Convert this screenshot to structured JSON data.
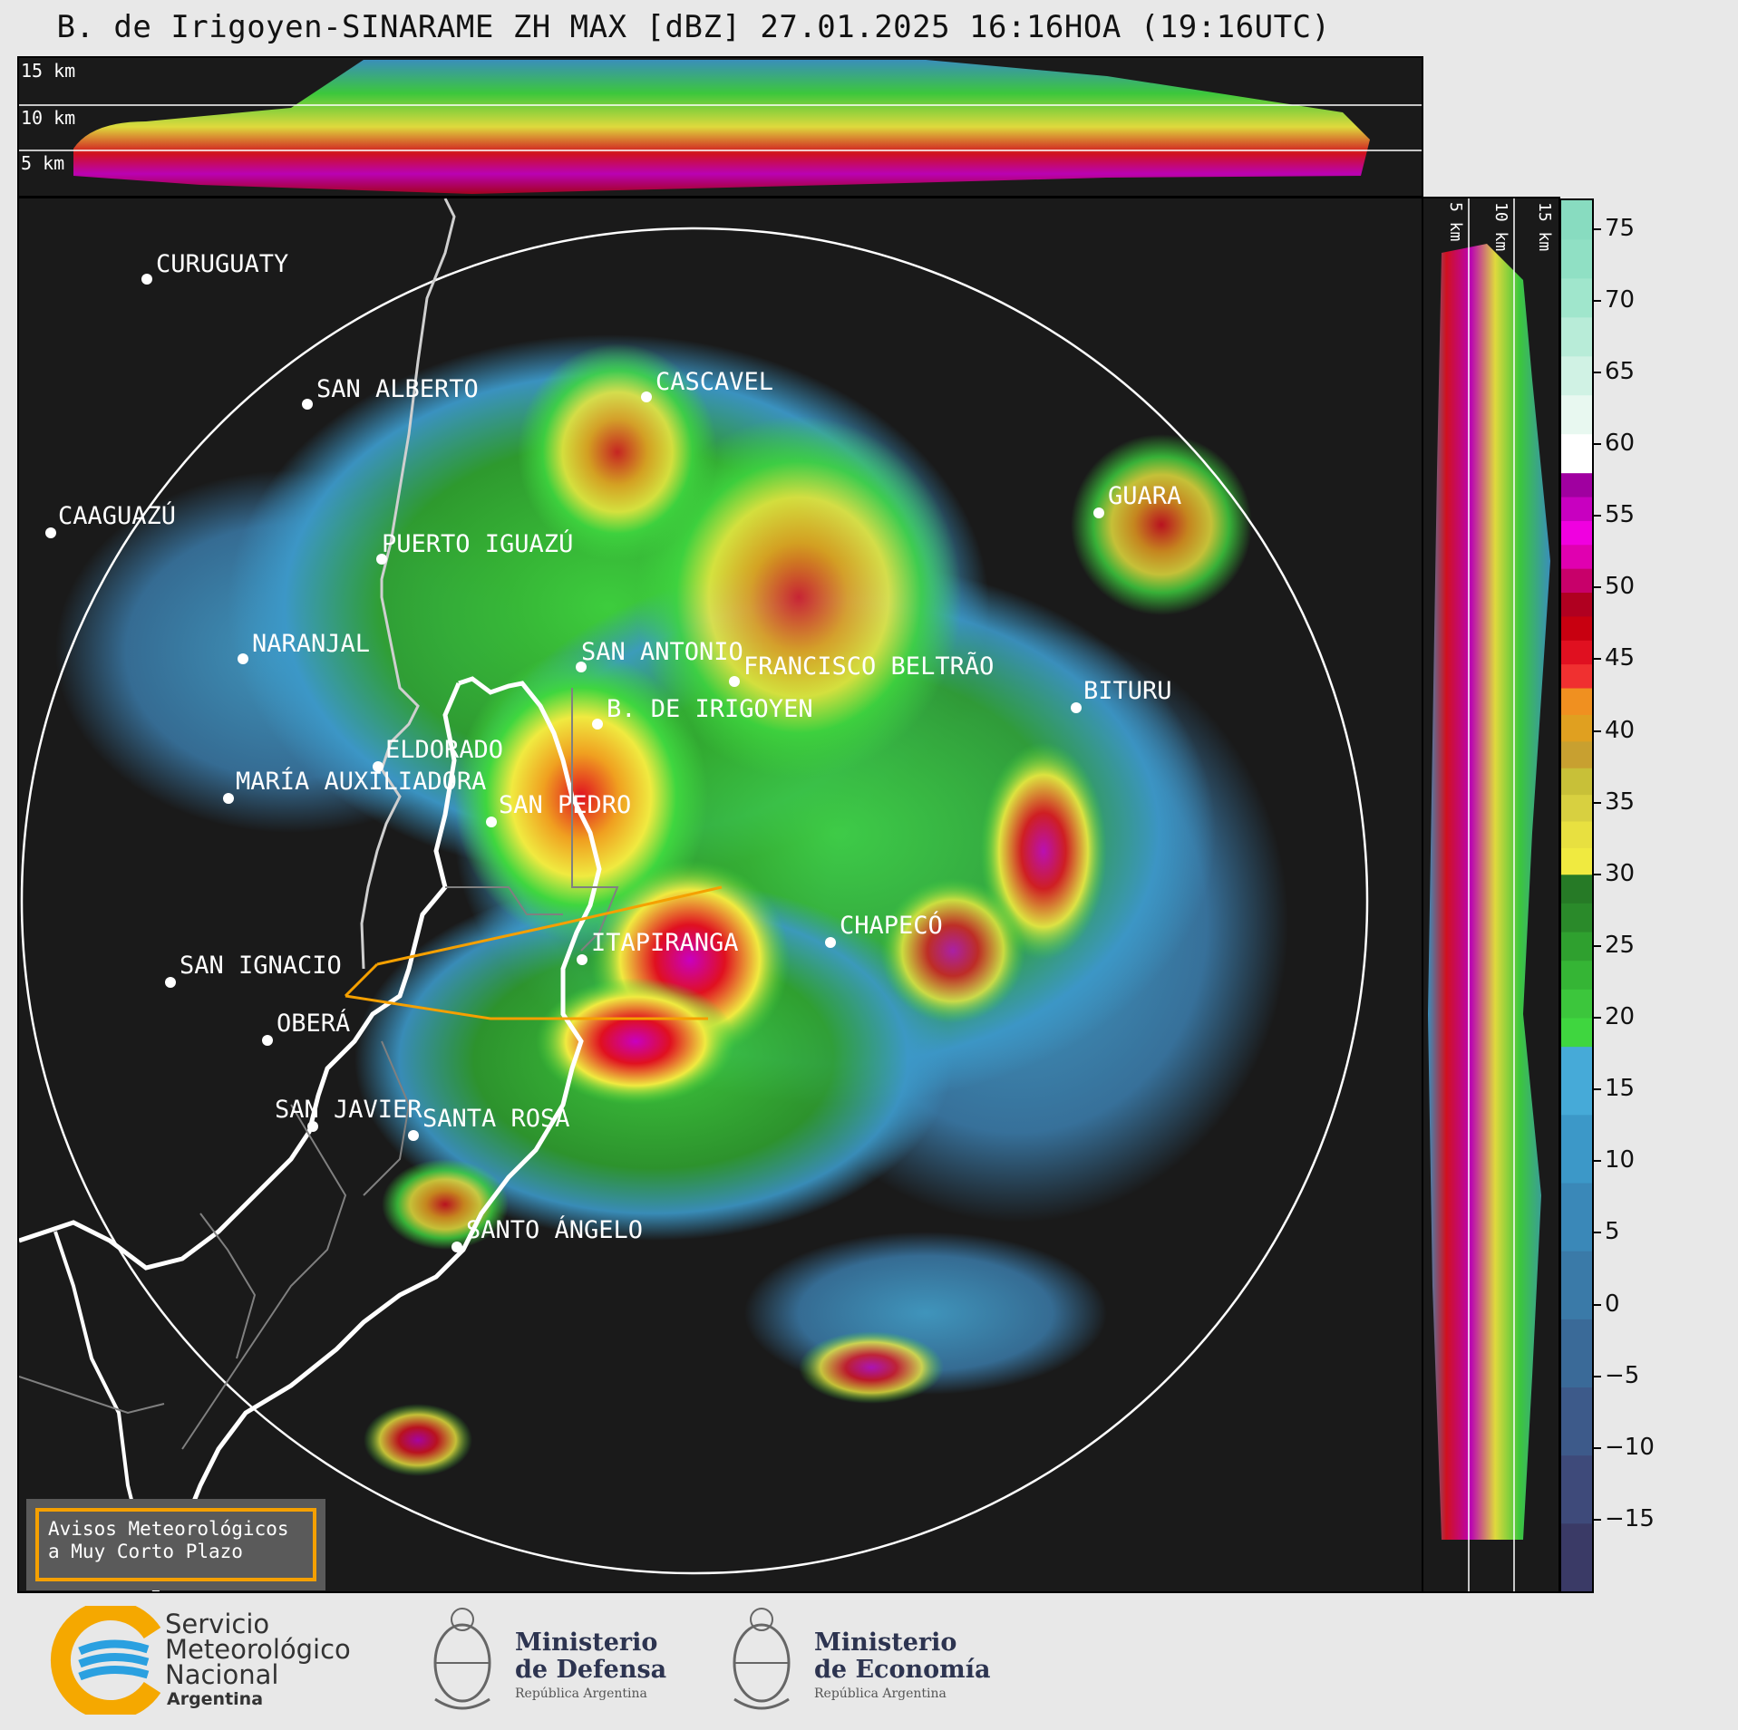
{
  "title": "B. de Irigoyen-SINARAME ZH MAX [dBZ] 27.01.2025 16:16HOA (19:16UTC)",
  "top_panel": {
    "altitude_labels": [
      "15 km",
      "10 km",
      "5 km"
    ]
  },
  "side_panel": {
    "altitude_labels": [
      "5 km",
      "10 km",
      "15 km"
    ]
  },
  "colorbar": {
    "unit": "dBZ",
    "ticks": [
      "75",
      "70",
      "65",
      "60",
      "55",
      "50",
      "45",
      "40",
      "35",
      "30",
      "25",
      "20",
      "15",
      "10",
      "5",
      "0",
      "−5",
      "−10",
      "−15"
    ],
    "range": [
      -20,
      77
    ],
    "bands": [
      {
        "from": -20,
        "to": 18,
        "colors": [
          "#3a3a66",
          "#3e4a7a",
          "#3d5a8a",
          "#3a6a98",
          "#3a7aa8",
          "#3a88b8",
          "#3c98c8",
          "#46aad8"
        ]
      },
      {
        "from": 18,
        "to": 30,
        "colors": [
          "#3fd63f",
          "#3cc63c",
          "#35b535",
          "#2fa02f",
          "#2a8a2a",
          "#267a26"
        ]
      },
      {
        "from": 30,
        "to": 43,
        "colors": [
          "#f0ea40",
          "#e8e040",
          "#d8d040",
          "#c8c038",
          "#c8a030",
          "#e0a020",
          "#f09020"
        ]
      },
      {
        "from": 43,
        "to": 58,
        "colors": [
          "#f03030",
          "#e01020",
          "#c80010",
          "#b00020",
          "#c8006a",
          "#e000b0",
          "#f000e0",
          "#c800c0",
          "#a000a0"
        ]
      },
      {
        "from": 58,
        "to": 77,
        "colors": [
          "#ffffff",
          "#e8f8f0",
          "#d0f2e4",
          "#b8ecd8",
          "#a0e6cc",
          "#90e0c4",
          "#88dcc0"
        ]
      }
    ]
  },
  "map": {
    "cities": [
      {
        "name": "CURUGUATY"
      },
      {
        "name": "SAN ALBERTO"
      },
      {
        "name": "CASCAVEL"
      },
      {
        "name": "CAAGUAZÚ"
      },
      {
        "name": "GUARA"
      },
      {
        "name": "PUERTO IGUAZÚ"
      },
      {
        "name": "NARANJAL"
      },
      {
        "name": "SAN ANTONIO"
      },
      {
        "name": "FRANCISCO BELTRÃO"
      },
      {
        "name": "BITURU"
      },
      {
        "name": "B. DE IRIGOYEN"
      },
      {
        "name": "ELDORADO"
      },
      {
        "name": "MARÍA AUXILIADORA"
      },
      {
        "name": "SAN PEDRO"
      },
      {
        "name": "CHAPECÓ"
      },
      {
        "name": "ITAPIRANGA"
      },
      {
        "name": "SAN IGNACIO"
      },
      {
        "name": "OBERÁ"
      },
      {
        "name": "SAN JAVIER"
      },
      {
        "name": "SANTA ROSA"
      },
      {
        "name": "SANTO ÁNGELO"
      }
    ]
  },
  "avisos": {
    "line1": "Avisos Meteorológicos",
    "line2": "a Muy Corto Plazo"
  },
  "footer": {
    "smn_line1": "Servicio",
    "smn_line2": "Meteorológico",
    "smn_line3": "Nacional",
    "smn_line4": "Argentina",
    "defensa_line1": "Ministerio",
    "defensa_line2": "de Defensa",
    "defensa_line3": "República Argentina",
    "economia_line1": "Ministerio",
    "economia_line2": "de Economía",
    "economia_line3": "República Argentina"
  }
}
